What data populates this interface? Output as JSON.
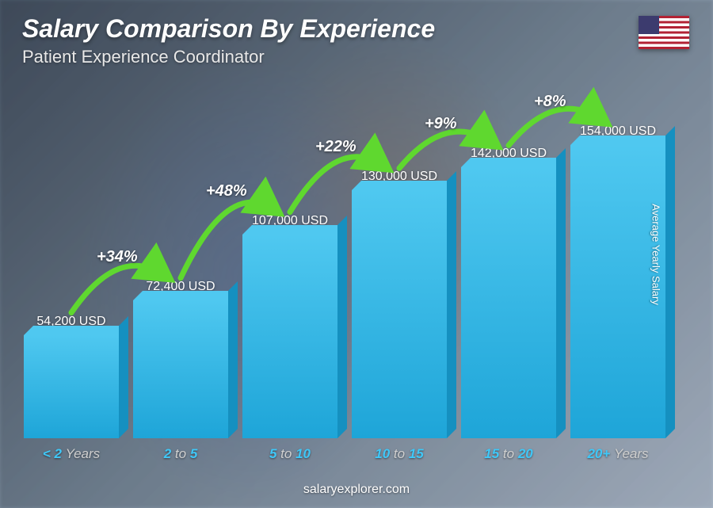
{
  "header": {
    "title": "Salary Comparison By Experience",
    "subtitle": "Patient Experience Coordinator"
  },
  "flag": {
    "country": "United States"
  },
  "yaxis_label": "Average Yearly Salary",
  "footer": "salaryexplorer.com",
  "chart": {
    "type": "bar",
    "bar_color_front": "#1ea5d8",
    "bar_color_top": "#4fc8f0",
    "bar_color_side": "#1590c0",
    "arrow_color": "#5fd82f",
    "pct_text_color": "#ffffff",
    "value_text_color": "#ffffff",
    "xlabel_accent_color": "#3fc8f8",
    "xlabel_dim_color": "#d0d0d0",
    "max_value": 180000,
    "bars": [
      {
        "label_pre": "< 2",
        "label_post": "Years",
        "value_label": "54,200 USD",
        "value": 54200
      },
      {
        "label_pre": "2",
        "label_mid": "to",
        "label_post": "5",
        "value_label": "72,400 USD",
        "value": 72400,
        "pct": "+34%"
      },
      {
        "label_pre": "5",
        "label_mid": "to",
        "label_post": "10",
        "value_label": "107,000 USD",
        "value": 107000,
        "pct": "+48%"
      },
      {
        "label_pre": "10",
        "label_mid": "to",
        "label_post": "15",
        "value_label": "130,000 USD",
        "value": 130000,
        "pct": "+22%"
      },
      {
        "label_pre": "15",
        "label_mid": "to",
        "label_post": "20",
        "value_label": "142,000 USD",
        "value": 142000,
        "pct": "+9%"
      },
      {
        "label_pre": "20+",
        "label_post": "Years",
        "value_label": "154,000 USD",
        "value": 154000,
        "pct": "+8%"
      }
    ]
  }
}
